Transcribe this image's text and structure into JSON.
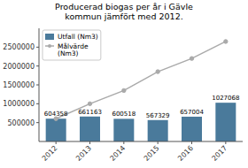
{
  "chart_data": {
    "type": "bar",
    "title": "Producerad biogas per år i Gävle\nkommun jämfört med 2012.",
    "categories": [
      "2012",
      "2013",
      "2014",
      "2015",
      "2016",
      "2017"
    ],
    "series": [
      {
        "name": "Utfall (Nm3)",
        "type": "bar",
        "color": "#4a7a9b",
        "data_labels": true,
        "values": [
          604358,
          661163,
          600518,
          567329,
          657004,
          1027068
        ]
      },
      {
        "name": "Målvärde\n(Nm3)",
        "type": "line",
        "color": "#aaaaaa",
        "marker": "circle",
        "line_style": "solid",
        "values": [
          604358,
          1000000,
          1350000,
          1850000,
          2200000,
          2650000
        ]
      }
    ],
    "ylim": [
      0,
      3000000
    ],
    "yticks": [
      500000,
      1000000,
      1500000,
      2000000,
      2500000
    ],
    "grid": false,
    "legend": "upper left"
  }
}
